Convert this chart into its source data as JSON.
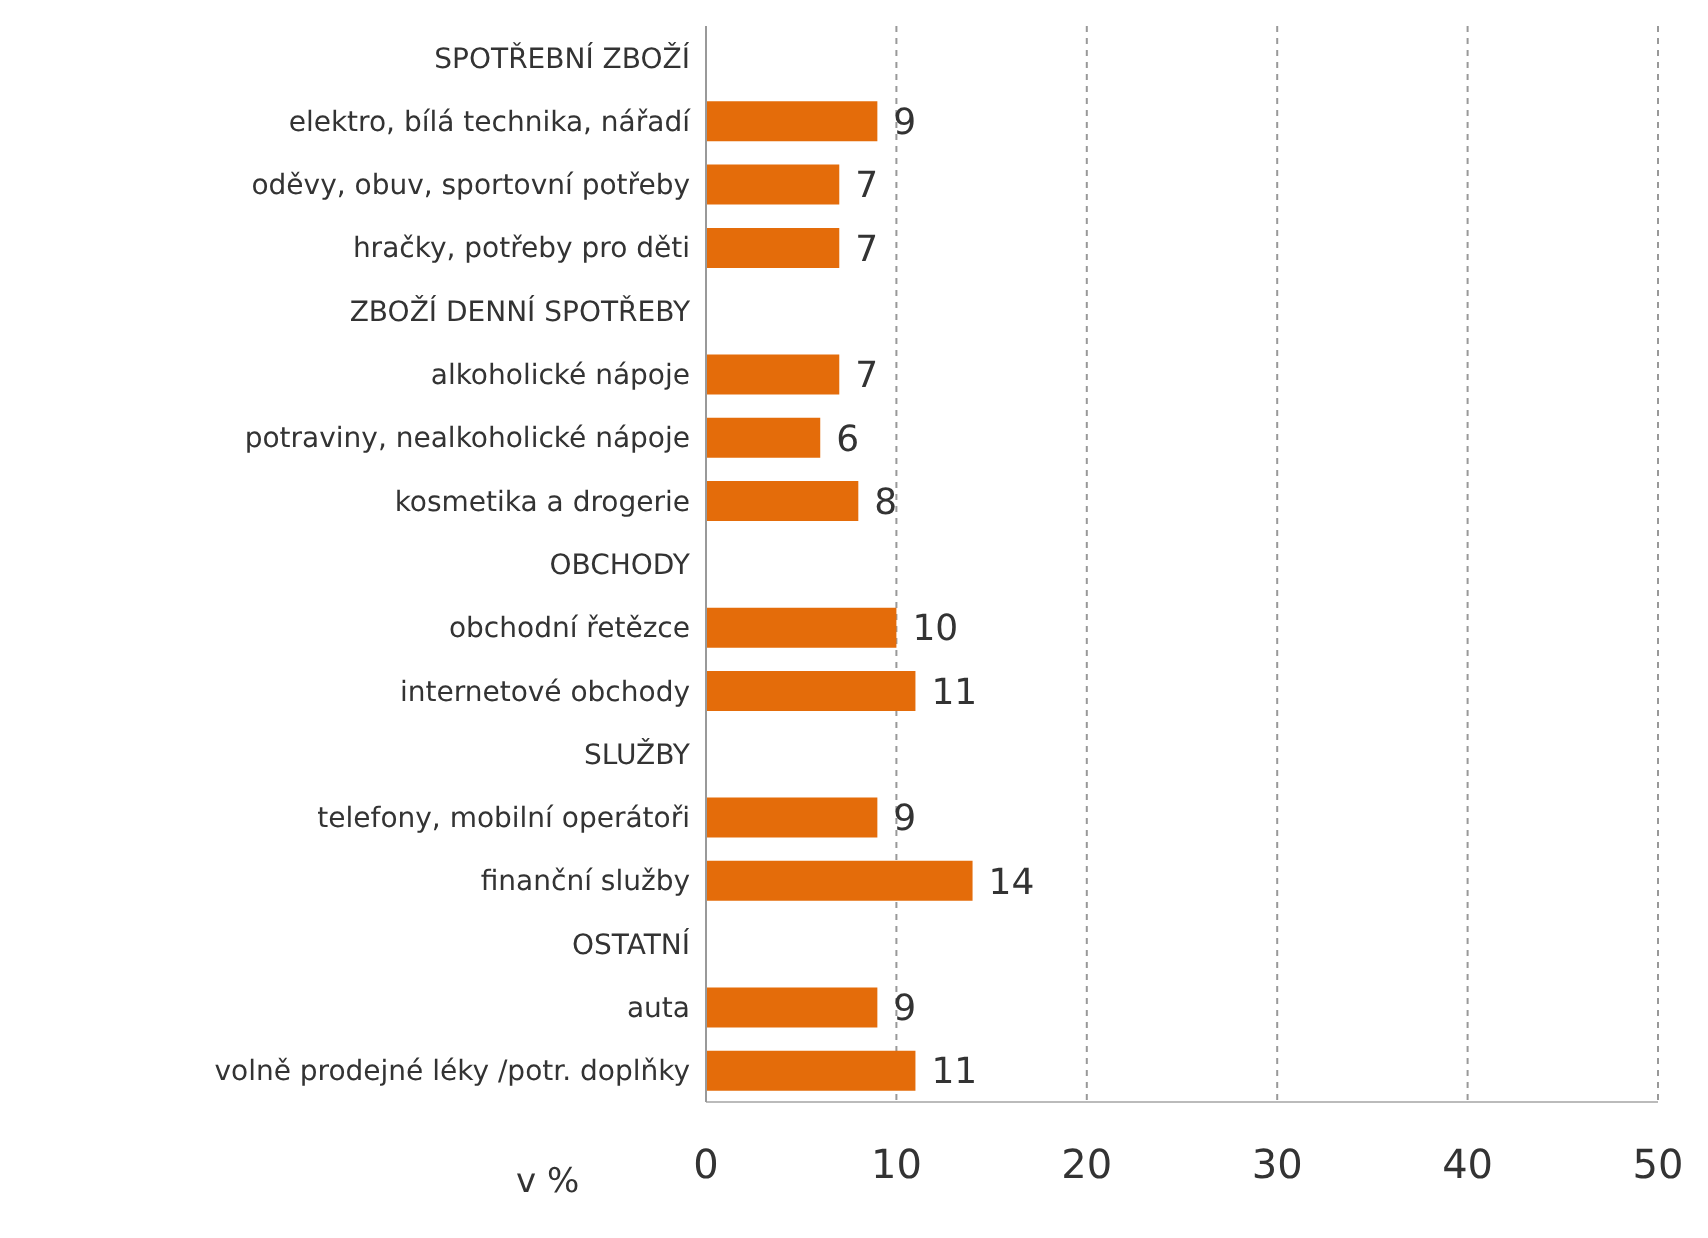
{
  "chart_data": {
    "type": "bar",
    "orientation": "horizontal",
    "xlabel": "v %",
    "categories": [
      "SPOTŘEBNÍ ZBOŽÍ",
      "elektro, bílá technika, nářadí",
      "oděvy, obuv, sportovní potřeby",
      "hračky, potřeby pro děti",
      "ZBOŽÍ DENNÍ SPOTŘEBY",
      "alkoholické nápoje",
      "potraviny, nealkoholické nápoje",
      "kosmetika a drogerie",
      "OBCHODY",
      "obchodní řetězce",
      "internetové obchody",
      "SLUŽBY",
      "telefony, mobilní operátoři",
      "finanční služby",
      "OSTATNÍ",
      "auta",
      "volně prodejné léky /potr. doplňky"
    ],
    "values": [
      null,
      9,
      7,
      7,
      null,
      7,
      6,
      8,
      null,
      10,
      11,
      null,
      9,
      14,
      null,
      9,
      11
    ],
    "color": "#e46c0a",
    "data_labels": true,
    "xlim": [
      0,
      50
    ],
    "xticks": [
      0,
      10,
      20,
      30,
      40,
      50
    ],
    "grid": "x"
  }
}
